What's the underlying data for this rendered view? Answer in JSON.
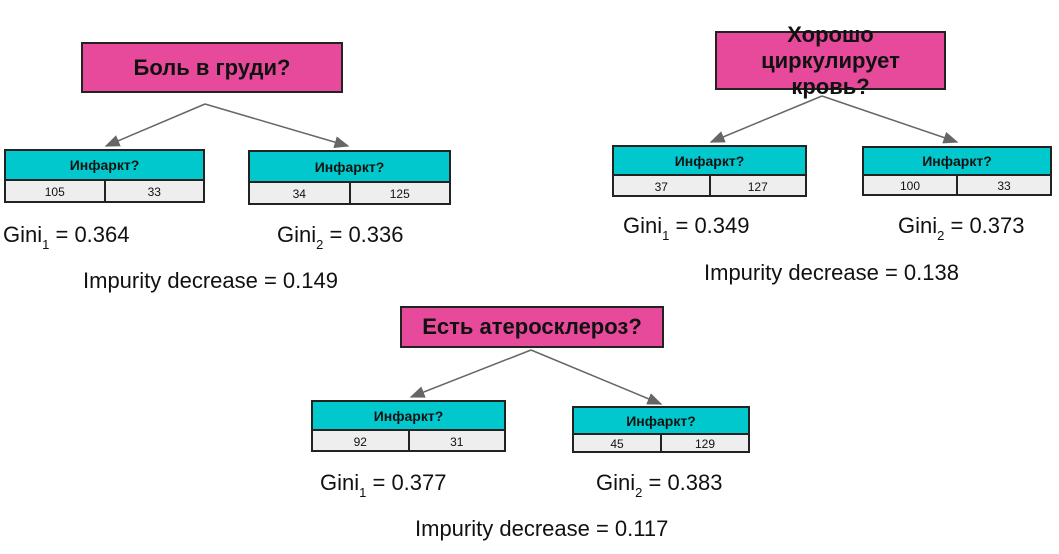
{
  "trees": [
    {
      "question": "Боль в груди?",
      "left": {
        "label": "Инфаркт?",
        "yes": "105",
        "no": "33"
      },
      "right": {
        "label": "Инфаркт?",
        "yes": "34",
        "no": "125"
      },
      "gini_left": {
        "prefix": "Gini",
        "sub": "1",
        "value": "= 0.364"
      },
      "gini_right": {
        "prefix": "Gini",
        "sub": "2",
        "value": "= 0.336"
      },
      "impurity_decrease": "Impurity decrease =  0.149"
    },
    {
      "question": "Хорошо циркулирует кровь?",
      "left": {
        "label": "Инфаркт?",
        "yes": "37",
        "no": "127"
      },
      "right": {
        "label": "Инфаркт?",
        "yes": "100",
        "no": "33"
      },
      "gini_left": {
        "prefix": "Gini",
        "sub": "1",
        "value": "= 0.349"
      },
      "gini_right": {
        "prefix": "Gini",
        "sub": "2",
        "value": "= 0.373"
      },
      "impurity_decrease": "Impurity decrease =  0.138"
    },
    {
      "question": "Есть атеросклероз?",
      "left": {
        "label": "Инфаркт?",
        "yes": "92",
        "no": "31"
      },
      "right": {
        "label": "Инфаркт?",
        "yes": "45",
        "no": "129"
      },
      "gini_left": {
        "prefix": "Gini",
        "sub": "1",
        "value": "= 0.377"
      },
      "gini_right": {
        "prefix": "Gini",
        "sub": "2",
        "value": "= 0.383"
      },
      "impurity_decrease": "Impurity decrease =  0.117"
    }
  ],
  "colors": {
    "question": "#e84a9b",
    "leaf_header": "#00c8cc",
    "leaf_body": "#eeeeee",
    "arrow": "#666666"
  }
}
